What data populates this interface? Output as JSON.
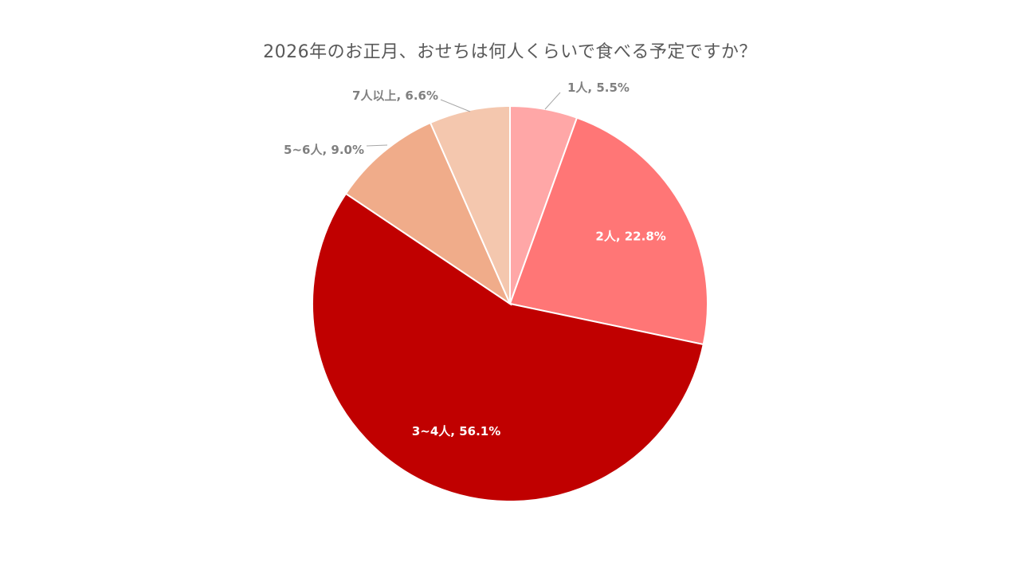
{
  "chart_data": {
    "type": "pie",
    "title": "2026年のお正月、おせちは何人くらいで食べる予定ですか？",
    "categories": [
      "1人",
      "2人",
      "3~4人",
      "5~6人",
      "7人以上"
    ],
    "values": [
      5.5,
      22.8,
      56.1,
      9.0,
      6.6
    ],
    "unit": "%",
    "labels": [
      "1人, 5.5%",
      "2人, 22.8%",
      "3~4人, 56.1%",
      "5~6人, 9.0%",
      "7人以上, 6.6%"
    ],
    "colors": [
      "#ffa7a7",
      "#ff7676",
      "#c00000",
      "#f0ac8a",
      "#f4c7ae"
    ],
    "label_colors": [
      "#808080",
      "#ffffff",
      "#ffffff",
      "#808080",
      "#808080"
    ],
    "label_positions": [
      "outside",
      "inside",
      "inside",
      "outside",
      "outside"
    ],
    "start_angle": "12 o'clock",
    "direction": "clockwise",
    "legend": "none"
  }
}
